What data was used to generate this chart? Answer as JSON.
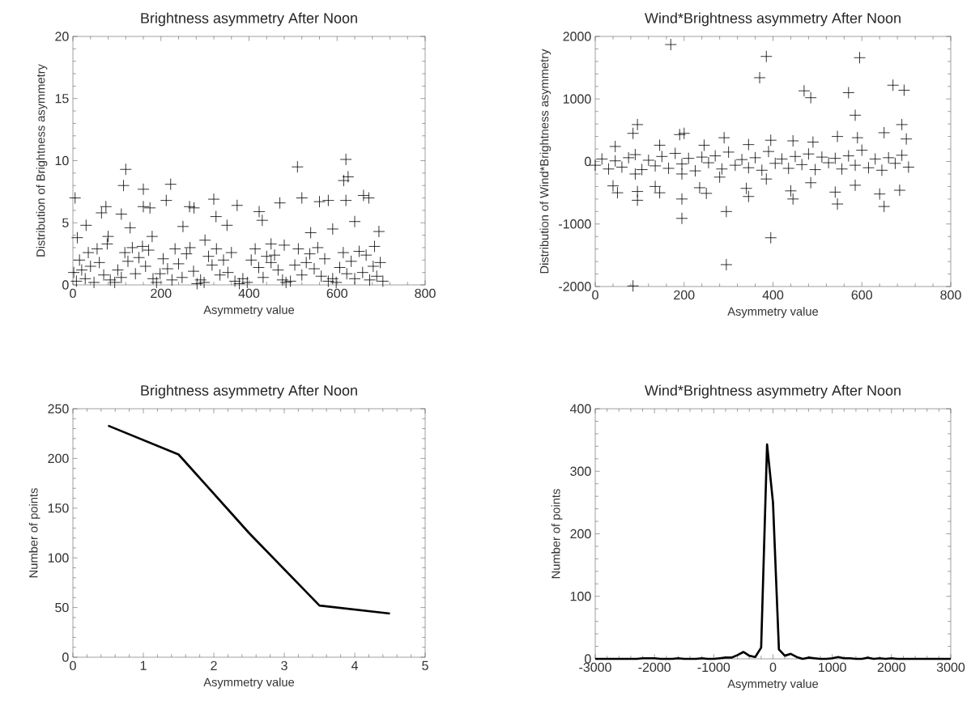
{
  "chart_data": [
    {
      "type": "scatter",
      "title": "Brightness asymmetry After Noon",
      "xlabel": "Asymmetry value",
      "ylabel": "Distribution of Brightness asymmetry",
      "xlim": [
        0,
        800
      ],
      "ylim": [
        0,
        20
      ],
      "xticks": [
        0,
        200,
        400,
        600,
        800
      ],
      "yticks": [
        0,
        5,
        10,
        15,
        20
      ],
      "marker": "cross",
      "series": [
        {
          "color": "#000000",
          "x": [
            5,
            115,
            120,
            160,
            222,
            212,
            320,
            373,
            510,
            620,
            625,
            615,
            620,
            660,
            672,
            470,
            520,
            560,
            580,
            75,
            65,
            160,
            175,
            265,
            275,
            110,
            423,
            325,
            430,
            640,
            695,
            30,
            130,
            350,
            590,
            250,
            540,
            10,
            80,
            180,
            450,
            300,
            480,
            685,
            2,
            8,
            15,
            20,
            28,
            35,
            40,
            48,
            55,
            60,
            70,
            78,
            85,
            95,
            102,
            110,
            118,
            125,
            135,
            142,
            150,
            158,
            165,
            172,
            182,
            190,
            198,
            205,
            215,
            225,
            232,
            240,
            248,
            258,
            266,
            274,
            282,
            290,
            298,
            308,
            316,
            326,
            334,
            342,
            352,
            360,
            368,
            378,
            386,
            396,
            405,
            414,
            422,
            432,
            440,
            450,
            458,
            466,
            476,
            484,
            494,
            504,
            512,
            520,
            530,
            538,
            548,
            556,
            564,
            572,
            580,
            590,
            598,
            606,
            614,
            622,
            632,
            640,
            650,
            658,
            666,
            674,
            682,
            690,
            698,
            704
          ],
          "values": [
            7.0,
            8.0,
            9.3,
            7.7,
            8.1,
            6.8,
            6.9,
            6.4,
            9.5,
            10.1,
            8.7,
            8.4,
            6.8,
            7.2,
            7.0,
            6.6,
            7.0,
            6.7,
            6.8,
            6.3,
            5.8,
            6.3,
            6.2,
            6.3,
            6.2,
            5.7,
            5.9,
            5.5,
            5.2,
            5.1,
            4.3,
            4.8,
            4.6,
            4.8,
            4.5,
            4.7,
            4.2,
            3.8,
            3.9,
            3.9,
            3.3,
            3.6,
            3.2,
            3.1,
            1.0,
            0.3,
            2.0,
            1.2,
            0.5,
            2.6,
            1.5,
            0.2,
            2.9,
            1.8,
            0.8,
            3.3,
            0.4,
            0.2,
            1.2,
            0.6,
            2.6,
            1.9,
            3.0,
            0.9,
            2.2,
            3.1,
            1.5,
            2.8,
            0.5,
            0.2,
            0.9,
            2.1,
            1.3,
            0.4,
            2.9,
            1.7,
            0.6,
            2.5,
            3.0,
            1.1,
            0.1,
            0.4,
            0.2,
            2.3,
            1.6,
            2.9,
            0.8,
            2.0,
            1.0,
            2.6,
            0.3,
            0.1,
            0.5,
            0.2,
            2.0,
            2.9,
            1.4,
            0.6,
            2.3,
            1.8,
            2.4,
            1.2,
            0.4,
            0.2,
            0.3,
            1.6,
            2.9,
            0.8,
            1.8,
            2.5,
            1.3,
            3.0,
            0.7,
            2.1,
            0.3,
            0.5,
            0.2,
            1.4,
            2.6,
            0.9,
            1.9,
            0.5,
            2.7,
            1.0,
            2.4,
            0.4,
            1.5,
            0.7,
            1.8,
            0.3
          ]
        }
      ]
    },
    {
      "type": "scatter",
      "title": "Wind*Brightness asymmetry After Noon",
      "xlabel": "Asymmetry value",
      "ylabel": "Distribution of Wind*Brightness asymmetry",
      "xlim": [
        0,
        800
      ],
      "ylim": [
        -2000,
        2000
      ],
      "xticks": [
        0,
        200,
        400,
        600,
        800
      ],
      "yticks": [
        -2000,
        -1000,
        0,
        1000,
        2000
      ],
      "marker": "cross",
      "series": [
        {
          "color": "#000000",
          "x": [
            170,
            385,
            370,
            595,
            470,
            485,
            570,
            670,
            695,
            585,
            690,
            95,
            85,
            190,
            200,
            290,
            395,
            445,
            490,
            545,
            590,
            650,
            700,
            45,
            145,
            245,
            345,
            40,
            50,
            135,
            145,
            235,
            250,
            340,
            345,
            440,
            445,
            485,
            540,
            545,
            585,
            640,
            650,
            685,
            95,
            95,
            195,
            195,
            295,
            295,
            395,
            85,
            280,
            195,
            90,
            385,
            0,
            15,
            30,
            45,
            60,
            75,
            90,
            105,
            120,
            135,
            150,
            165,
            180,
            195,
            210,
            225,
            240,
            255,
            270,
            285,
            300,
            315,
            330,
            345,
            360,
            375,
            390,
            405,
            420,
            435,
            450,
            465,
            480,
            495,
            510,
            525,
            540,
            555,
            570,
            585,
            600,
            615,
            630,
            645,
            660,
            675,
            690,
            705
          ],
          "values": [
            1870,
            1680,
            1340,
            1660,
            1130,
            1020,
            1100,
            1220,
            1140,
            740,
            590,
            590,
            450,
            430,
            450,
            380,
            340,
            330,
            310,
            400,
            380,
            460,
            360,
            240,
            260,
            260,
            270,
            -390,
            -500,
            -400,
            -500,
            -420,
            -510,
            -430,
            -560,
            -470,
            -600,
            -340,
            -490,
            -680,
            -380,
            -520,
            -720,
            -460,
            -480,
            -620,
            -600,
            -910,
            -800,
            -1650,
            -1220,
            -1990,
            -250,
            -200,
            -200,
            -280,
            -60,
            40,
            -120,
            10,
            -90,
            60,
            110,
            -130,
            20,
            -70,
            80,
            -110,
            130,
            -40,
            50,
            -150,
            70,
            -20,
            90,
            -120,
            150,
            -60,
            30,
            -100,
            60,
            -140,
            160,
            -30,
            40,
            -110,
            80,
            -50,
            120,
            -130,
            70,
            -20,
            50,
            -120,
            90,
            -60,
            180,
            -100,
            40,
            -140,
            60,
            -30,
            100,
            -90
          ]
        }
      ]
    },
    {
      "type": "line",
      "title": "Brightness asymmetry After Noon",
      "xlabel": "Asymmetry value",
      "ylabel": "Number of points",
      "xlim": [
        0,
        5
      ],
      "ylim": [
        0,
        250
      ],
      "xticks": [
        0,
        1,
        2,
        3,
        4,
        5
      ],
      "yticks": [
        0,
        50,
        100,
        150,
        200,
        250
      ],
      "series": [
        {
          "color": "#000000",
          "x": [
            0.5,
            1.5,
            2.5,
            3.5,
            4.5
          ],
          "values": [
            233,
            204,
            125,
            52,
            44
          ]
        }
      ]
    },
    {
      "type": "line",
      "title": "Wind*Brightness asymmetry After Noon",
      "xlabel": "Asymmetry value",
      "ylabel": "Number of points",
      "xlim": [
        -3000,
        3000
      ],
      "ylim": [
        0,
        400
      ],
      "xticks": [
        -3000,
        -2000,
        -1000,
        0,
        1000,
        2000,
        3000
      ],
      "yticks": [
        0,
        100,
        200,
        300,
        400
      ],
      "series": [
        {
          "color": "#000000",
          "x": [
            -3000,
            -2900,
            -2800,
            -2700,
            -2600,
            -2500,
            -2400,
            -2300,
            -2200,
            -2100,
            -2000,
            -1900,
            -1800,
            -1700,
            -1600,
            -1500,
            -1400,
            -1300,
            -1200,
            -1100,
            -1000,
            -900,
            -800,
            -700,
            -600,
            -500,
            -400,
            -300,
            -200,
            -100,
            0,
            100,
            200,
            300,
            400,
            500,
            600,
            700,
            800,
            900,
            1000,
            1100,
            1200,
            1300,
            1400,
            1500,
            1600,
            1700,
            1800,
            1900,
            2000,
            2100,
            2200,
            2300,
            2400,
            2500,
            2600,
            2700,
            2800,
            2900,
            3000
          ],
          "values": [
            0,
            0,
            0,
            0,
            0,
            0,
            0,
            0,
            1,
            1,
            1,
            0,
            0,
            0,
            1,
            0,
            0,
            0,
            1,
            0,
            0,
            1,
            2,
            2,
            6,
            11,
            5,
            3,
            18,
            343,
            250,
            15,
            5,
            8,
            3,
            0,
            2,
            1,
            0,
            0,
            1,
            3,
            1,
            1,
            0,
            0,
            2,
            0,
            1,
            0,
            1,
            0,
            0,
            0,
            0,
            0,
            0,
            0,
            0,
            0,
            0
          ]
        }
      ]
    }
  ]
}
